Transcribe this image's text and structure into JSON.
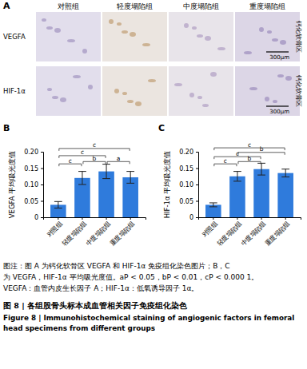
{
  "panel_a": {
    "label": "A",
    "columns": [
      "对照组",
      "轻度塌陷组",
      "中度塌陷组",
      "重度塌陷组"
    ],
    "rows": [
      "VEGFA",
      "HIF-1α"
    ],
    "region": "钙化软骨区",
    "scale_bar": "300μm"
  },
  "chart_data": [
    {
      "type": "bar",
      "title": "B",
      "y_label": "VEGFA 平均吸光度值",
      "categories": [
        "对照组",
        "轻度塌陷组",
        "中度塌陷组",
        "重度塌陷组"
      ],
      "values": [
        0.038,
        0.12,
        0.14,
        0.122
      ],
      "errors": [
        0.01,
        0.02,
        0.022,
        0.018
      ],
      "color": "#2f7bdc",
      "ylim": [
        0,
        0.2
      ],
      "yticks": [
        0,
        0.05,
        {
          "value": 0.1,
          "label": "0.10"
        },
        0.15,
        {
          "value": 0.2,
          "label": "0.20"
        }
      ],
      "annotations": [
        {
          "groups": [
            "对照组",
            "轻度塌陷组"
          ],
          "y": 0.163,
          "label": "c"
        },
        {
          "groups": [
            "轻度塌陷组",
            "中度塌陷组"
          ],
          "y": 0.17,
          "label": "b"
        },
        {
          "groups": [
            "中度塌陷组",
            "重度塌陷组"
          ],
          "y": 0.17,
          "label": "a"
        },
        {
          "groups": [
            "对照组",
            "中度塌陷组"
          ],
          "y": 0.188,
          "label": "c"
        },
        {
          "groups": [
            "对照组",
            "重度塌陷组"
          ],
          "y": 0.21,
          "label": "c"
        }
      ]
    },
    {
      "type": "bar",
      "title": "C",
      "y_label": "HIF-1α 平均吸光度值",
      "categories": [
        "对照组",
        "轻度塌陷组",
        "中度塌陷组",
        "重度塌陷组"
      ],
      "values": [
        0.038,
        0.125,
        0.147,
        0.135
      ],
      "errors": [
        0.006,
        0.015,
        0.018,
        0.012
      ],
      "color": "#2f7bdc",
      "ylim": [
        0,
        0.2
      ],
      "yticks": [
        0,
        0.05,
        {
          "value": 0.1,
          "label": "0.10"
        },
        0.15,
        {
          "value": 0.2,
          "label": "0.20"
        }
      ],
      "annotations": [
        {
          "groups": [
            "对照组",
            "轻度塌陷组"
          ],
          "y": 0.163,
          "label": "c"
        },
        {
          "groups": [
            "轻度塌陷组",
            "中度塌陷组"
          ],
          "y": 0.17,
          "label": "b"
        },
        {
          "groups": [
            "对照组",
            "中度塌陷组"
          ],
          "y": 0.185,
          "label": "c"
        },
        {
          "groups": [
            "轻度塌陷组",
            "重度塌陷组"
          ],
          "y": 0.198,
          "label": "b"
        },
        {
          "groups": [
            "对照组",
            "重度塌陷组"
          ],
          "y": 0.212,
          "label": "c"
        }
      ]
    }
  ],
  "caption": {
    "notes": [
      "图注：图 A 为钙化软骨区 VEGFA 和 HIF-1α 免疫组化染色图片；B，C",
      "为 VEGFA，HIF-1α 平均吸光度值。aP < 0.05，bP < 0.01，cP < 0.000 1。",
      "VEGFA：血管内皮生长因子 A；HIF-1α：低氧诱导因子 1α。"
    ],
    "title_zh": "图 8 | 各组股骨头标本成血管相关因子免疫组化染色",
    "title_en": [
      "Figure 8 | Immunohistochemical staining of angiogenic factors in femoral",
      "head specimens from different groups"
    ]
  }
}
